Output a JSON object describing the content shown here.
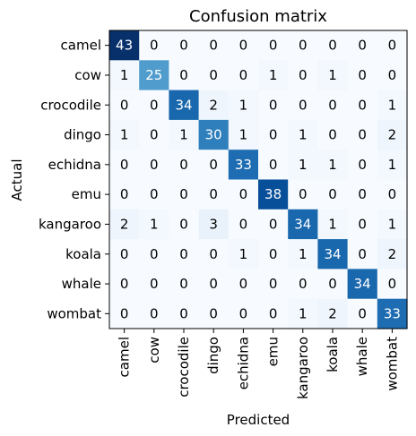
{
  "chart_data": {
    "type": "heatmap",
    "title": "Confusion matrix",
    "xlabel": "Predicted",
    "ylabel": "Actual",
    "colormap": "Blues",
    "row_labels": [
      "camel",
      "cow",
      "crocodile",
      "dingo",
      "echidna",
      "emu",
      "kangaroo",
      "koala",
      "whale",
      "wombat"
    ],
    "col_labels": [
      "camel",
      "cow",
      "crocodile",
      "dingo",
      "echidna",
      "emu",
      "kangaroo",
      "koala",
      "whale",
      "wombat"
    ],
    "values": [
      [
        43,
        0,
        0,
        0,
        0,
        0,
        0,
        0,
        0,
        0
      ],
      [
        1,
        25,
        0,
        0,
        0,
        1,
        0,
        1,
        0,
        0
      ],
      [
        0,
        0,
        34,
        2,
        1,
        0,
        0,
        0,
        0,
        1
      ],
      [
        1,
        0,
        1,
        30,
        1,
        0,
        1,
        0,
        0,
        2
      ],
      [
        0,
        0,
        0,
        0,
        33,
        0,
        1,
        1,
        0,
        1
      ],
      [
        0,
        0,
        0,
        0,
        0,
        38,
        0,
        0,
        0,
        0
      ],
      [
        2,
        1,
        0,
        3,
        0,
        0,
        34,
        1,
        0,
        1
      ],
      [
        0,
        0,
        0,
        0,
        1,
        0,
        1,
        34,
        0,
        2
      ],
      [
        0,
        0,
        0,
        0,
        0,
        0,
        0,
        0,
        34,
        0
      ],
      [
        0,
        0,
        0,
        0,
        0,
        0,
        1,
        2,
        0,
        33
      ]
    ],
    "vmin": 0,
    "vmax": 43
  }
}
